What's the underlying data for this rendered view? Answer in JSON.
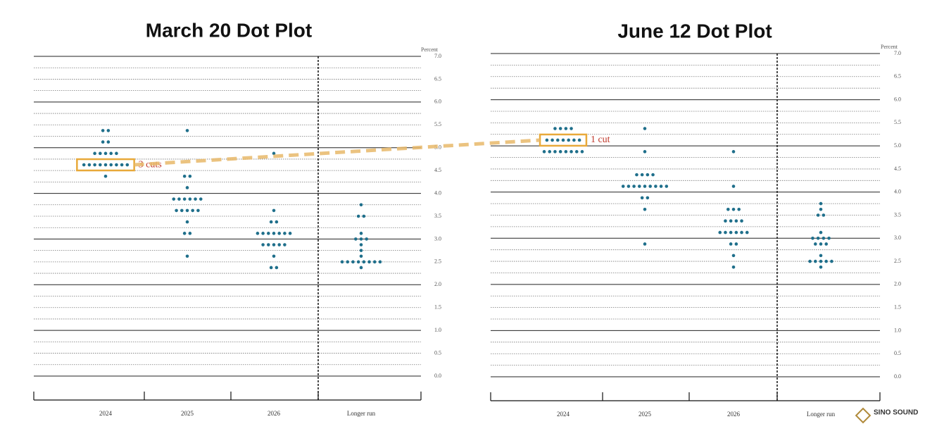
{
  "chart_data": [
    {
      "type": "dot",
      "title": "March 20 Dot Plot",
      "ylabel": "Percent",
      "categories": [
        "2024",
        "2025",
        "2026",
        "Longer run"
      ],
      "dots": [
        [
          {
            "value": 5.375,
            "count": 2
          },
          {
            "value": 5.125,
            "count": 2
          },
          {
            "value": 4.875,
            "count": 5
          },
          {
            "value": 4.625,
            "count": 9
          },
          {
            "value": 4.375,
            "count": 1
          }
        ],
        [
          {
            "value": 5.375,
            "count": 1
          },
          {
            "value": 4.375,
            "count": 2
          },
          {
            "value": 4.125,
            "count": 1
          },
          {
            "value": 3.875,
            "count": 6
          },
          {
            "value": 3.625,
            "count": 5
          },
          {
            "value": 3.375,
            "count": 1
          },
          {
            "value": 3.125,
            "count": 2
          },
          {
            "value": 2.625,
            "count": 1
          }
        ],
        [
          {
            "value": 4.875,
            "count": 1
          },
          {
            "value": 3.625,
            "count": 1
          },
          {
            "value": 3.375,
            "count": 2
          },
          {
            "value": 3.125,
            "count": 7
          },
          {
            "value": 2.875,
            "count": 5
          },
          {
            "value": 2.625,
            "count": 1
          },
          {
            "value": 2.375,
            "count": 2
          }
        ],
        [
          {
            "value": 3.75,
            "count": 1
          },
          {
            "value": 3.5,
            "count": 2
          },
          {
            "value": 3.125,
            "count": 1
          },
          {
            "value": 3.0,
            "count": 3
          },
          {
            "value": 2.875,
            "count": 1
          },
          {
            "value": 2.75,
            "count": 1
          },
          {
            "value": 2.625,
            "count": 1
          },
          {
            "value": 2.5,
            "count": 8
          },
          {
            "value": 2.375,
            "count": 1
          }
        ]
      ],
      "annotation": {
        "text": "3 cuts",
        "category": 0,
        "value": 4.625
      },
      "color": "#1f6f8b",
      "ylim": [
        0,
        7
      ],
      "yticks": [
        {
          "value": 0,
          "label": "0.0"
        },
        {
          "value": 0.5,
          "label": "0.5"
        },
        {
          "value": 1,
          "label": "1.0"
        },
        {
          "value": 1.5,
          "label": "1.5"
        },
        {
          "value": 2,
          "label": "2.0"
        },
        {
          "value": 2.5,
          "label": "2.5"
        },
        {
          "value": 3,
          "label": "3.0"
        },
        {
          "value": 3.5,
          "label": "3.5"
        },
        {
          "value": 4,
          "label": "4.0"
        },
        {
          "value": 4.5,
          "label": "4.5"
        },
        {
          "value": 5,
          "label": "5.0"
        },
        {
          "value": 5.5,
          "label": "5.5"
        },
        {
          "value": 6,
          "label": "6.0"
        },
        {
          "value": 6.5,
          "label": "6.5"
        },
        {
          "value": 7,
          "label": "7.0"
        }
      ]
    },
    {
      "type": "dot",
      "title": "June 12 Dot Plot",
      "ylabel": "Percent",
      "categories": [
        "2024",
        "2025",
        "2026",
        "Longer run"
      ],
      "dots": [
        [
          {
            "value": 5.375,
            "count": 4
          },
          {
            "value": 5.125,
            "count": 7
          },
          {
            "value": 4.875,
            "count": 8
          }
        ],
        [
          {
            "value": 5.375,
            "count": 1
          },
          {
            "value": 4.875,
            "count": 1
          },
          {
            "value": 4.375,
            "count": 4
          },
          {
            "value": 4.125,
            "count": 9
          },
          {
            "value": 3.875,
            "count": 2
          },
          {
            "value": 3.625,
            "count": 1
          },
          {
            "value": 2.875,
            "count": 1
          }
        ],
        [
          {
            "value": 4.875,
            "count": 1
          },
          {
            "value": 4.125,
            "count": 1
          },
          {
            "value": 3.625,
            "count": 3
          },
          {
            "value": 3.375,
            "count": 4
          },
          {
            "value": 3.125,
            "count": 6
          },
          {
            "value": 2.875,
            "count": 2
          },
          {
            "value": 2.625,
            "count": 1
          },
          {
            "value": 2.375,
            "count": 1
          }
        ],
        [
          {
            "value": 3.75,
            "count": 1
          },
          {
            "value": 3.625,
            "count": 1
          },
          {
            "value": 3.5,
            "count": 2
          },
          {
            "value": 3.125,
            "count": 1
          },
          {
            "value": 3.0,
            "count": 4
          },
          {
            "value": 2.875,
            "count": 3
          },
          {
            "value": 2.625,
            "count": 1
          },
          {
            "value": 2.5,
            "count": 5
          },
          {
            "value": 2.375,
            "count": 1
          }
        ]
      ],
      "annotation": {
        "text": "1 cut",
        "category": 0,
        "value": 5.125
      },
      "color": "#1f6f8b",
      "ylim": [
        0,
        7
      ],
      "yticks": [
        {
          "value": 0,
          "label": "0.0"
        },
        {
          "value": 0.5,
          "label": "0.5"
        },
        {
          "value": 1,
          "label": "1.0"
        },
        {
          "value": 1.5,
          "label": "1.5"
        },
        {
          "value": 2,
          "label": "2.0"
        },
        {
          "value": 2.5,
          "label": "2.5"
        },
        {
          "value": 3,
          "label": "3.0"
        },
        {
          "value": 3.5,
          "label": "3.5"
        },
        {
          "value": 4,
          "label": "4.0"
        },
        {
          "value": 4.5,
          "label": "4.5"
        },
        {
          "value": 5,
          "label": "5.0"
        },
        {
          "value": 5.5,
          "label": "5.5"
        },
        {
          "value": 6,
          "label": "6.0"
        },
        {
          "value": 6.5,
          "label": "6.5"
        },
        {
          "value": 7,
          "label": "7.0"
        }
      ]
    }
  ],
  "watermark": "SINO SOUND"
}
